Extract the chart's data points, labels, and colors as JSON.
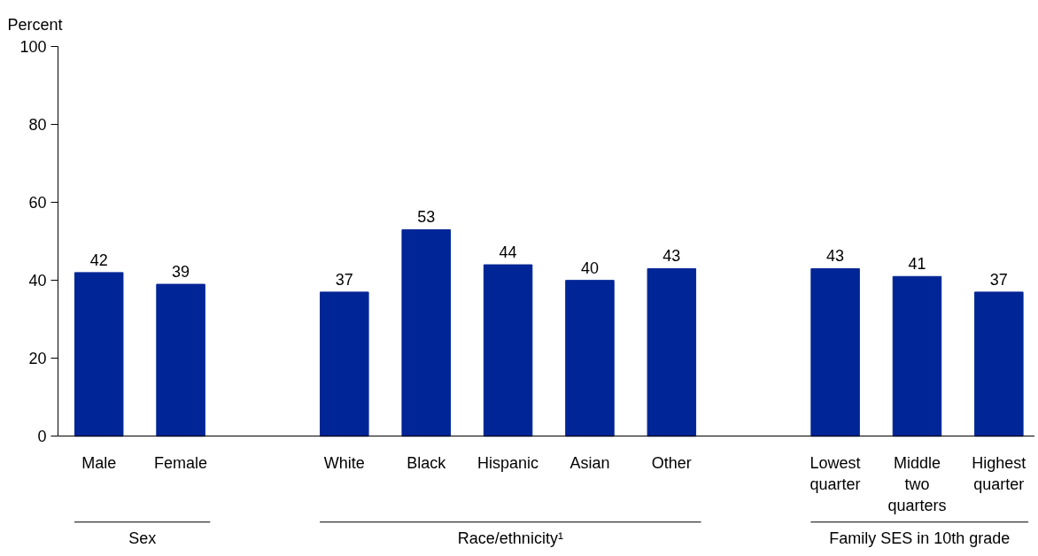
{
  "chart_data": {
    "type": "bar",
    "ylabel": "Percent",
    "categories": [
      "Male",
      "Female",
      null,
      "White",
      "Black",
      "Hispanic",
      "Asian",
      "Other",
      null,
      "Lowest quarter",
      "Middle two quarters",
      "Highest quarter"
    ],
    "values": [
      42,
      39,
      null,
      37,
      53,
      44,
      40,
      43,
      null,
      43,
      41,
      37
    ],
    "color": "#002596",
    "ylim": [
      0,
      100
    ],
    "yticks": [
      0,
      20,
      40,
      60,
      80,
      100
    ],
    "grid": false,
    "data_labels": true,
    "annotations": [
      "Sex",
      "Race/ethnicity¹",
      "Family SES in 10th grade"
    ]
  }
}
